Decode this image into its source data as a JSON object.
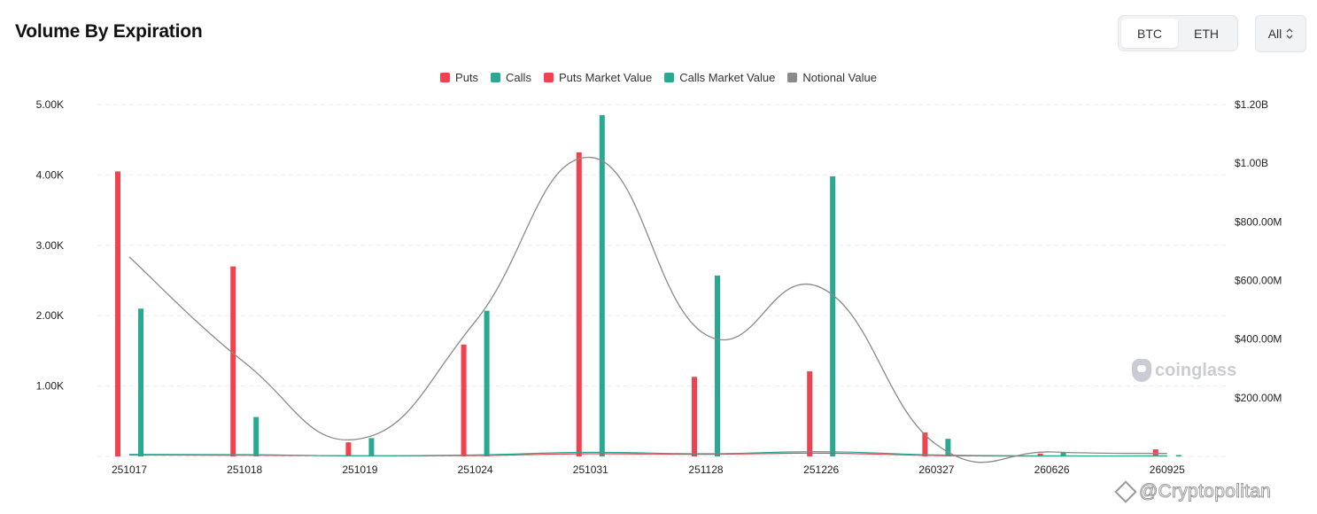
{
  "header": {
    "title": "Volume By Expiration"
  },
  "asset_toggle": {
    "options": [
      "BTC",
      "ETH"
    ],
    "selected": "BTC"
  },
  "filter_select": {
    "value": "All"
  },
  "colors": {
    "puts": "#f0434f",
    "calls": "#2aa992",
    "notional": "#8a8a8a",
    "grid": "#e9ebee",
    "axis_text": "#222222"
  },
  "legend": [
    {
      "label": "Puts",
      "color": "#f0434f"
    },
    {
      "label": "Calls",
      "color": "#2aa992"
    },
    {
      "label": "Puts Market Value",
      "color": "#f0434f"
    },
    {
      "label": "Calls Market Value",
      "color": "#2aa992"
    },
    {
      "label": "Notional Value",
      "color": "#8a8a8a"
    }
  ],
  "chart_data": {
    "type": "bar",
    "categories": [
      "251017",
      "251018",
      "251019",
      "251024",
      "251031",
      "251128",
      "251226",
      "260327",
      "260626",
      "260925"
    ],
    "series": [
      {
        "name": "Puts",
        "kind": "bar",
        "axis": "left",
        "values": [
          4050,
          2700,
          200,
          1590,
          4320,
          1130,
          1210,
          340,
          40,
          100
        ]
      },
      {
        "name": "Calls",
        "kind": "bar",
        "axis": "left",
        "values": [
          2100,
          560,
          260,
          2070,
          4850,
          2570,
          3980,
          250,
          60,
          20
        ]
      },
      {
        "name": "Puts Market Value",
        "kind": "line",
        "axis": "right",
        "values": [
          5,
          4,
          2,
          3,
          9,
          7,
          11,
          3,
          1,
          2
        ]
      },
      {
        "name": "Calls Market Value",
        "kind": "line",
        "axis": "right",
        "values": [
          7,
          6,
          2,
          5,
          14,
          9,
          16,
          5,
          2,
          1
        ]
      },
      {
        "name": "Notional Value",
        "kind": "line",
        "axis": "right",
        "values": [
          680,
          320,
          60,
          460,
          1020,
          415,
          575,
          40,
          15,
          10
        ]
      }
    ],
    "left_axis": {
      "ylim": [
        0,
        5000
      ],
      "ticks": [
        "5.00K",
        "4.00K",
        "3.00K",
        "2.00K",
        "1.00K"
      ],
      "tick_values": [
        5000,
        4000,
        3000,
        2000,
        1000
      ]
    },
    "right_axis": {
      "unit": "millions USD",
      "ylim": [
        0,
        1200
      ],
      "ticks": [
        "$1.20B",
        "$1.00B",
        "$800.00M",
        "$600.00M",
        "$400.00M",
        "$200.00M"
      ],
      "tick_values": [
        1200,
        1000,
        800,
        600,
        400,
        200
      ]
    },
    "grid": true,
    "legend_position": "top-center"
  },
  "watermark": {
    "text": "coinglass"
  },
  "credit": {
    "text": "@Cryptopolitan"
  }
}
